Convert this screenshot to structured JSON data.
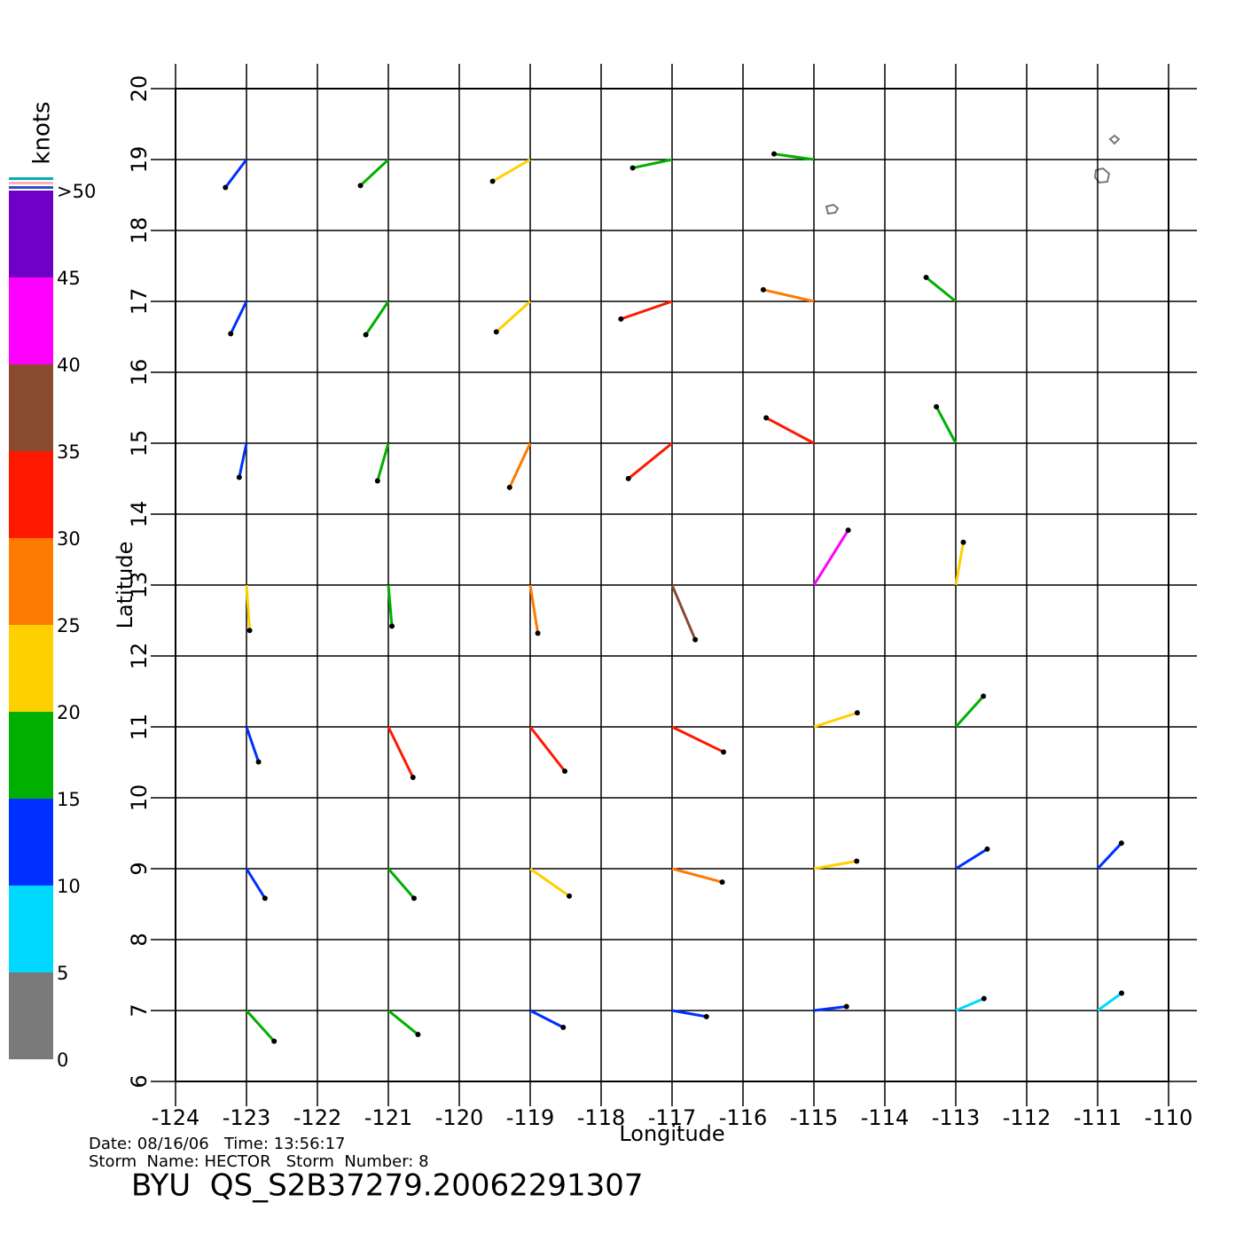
{
  "chart_data": {
    "type": "vector",
    "xlabel": "Longitude",
    "ylabel": "Latitude",
    "xlim": [
      -124,
      -110
    ],
    "ylim": [
      6,
      20
    ],
    "xticks": [
      -124,
      -123,
      -122,
      -121,
      -120,
      -119,
      -118,
      -117,
      -116,
      -115,
      -114,
      -113,
      -112,
      -111,
      -110
    ],
    "yticks": [
      6,
      7,
      8,
      9,
      10,
      11,
      12,
      13,
      14,
      15,
      16,
      17,
      18,
      19,
      20
    ],
    "grid": true,
    "grid_x": [
      -123,
      -121,
      -119,
      -117,
      -115,
      -113,
      -111
    ],
    "grid_y": [
      19,
      17,
      15,
      13,
      11,
      9,
      7
    ],
    "speed": [
      [
        12,
        15,
        20,
        17,
        17,
        null,
        null
      ],
      [
        13,
        17,
        22,
        30,
        28,
        15,
        null
      ],
      [
        12,
        16,
        25,
        32,
        30,
        18,
        null
      ],
      [
        22,
        18,
        25,
        35,
        40,
        20,
        null
      ],
      [
        14,
        32,
        32,
        33,
        22,
        18,
        null
      ],
      [
        12,
        16,
        24,
        28,
        20,
        14,
        12
      ],
      [
        18,
        15,
        14,
        12,
        10,
        8,
        7
      ]
    ],
    "direction": [
      [
        233,
        223,
        210,
        192,
        172,
        null,
        null
      ],
      [
        244,
        236,
        222,
        199,
        167,
        141,
        null
      ],
      [
        258,
        254,
        245,
        219,
        152,
        118,
        null
      ],
      [
        274,
        275,
        279,
        293,
        58,
        80,
        null
      ],
      [
        289,
        296,
        308,
        334,
        18,
        48,
        null
      ],
      [
        302,
        311,
        325,
        345,
        10,
        32,
        47
      ],
      [
        312,
        321,
        333,
        350,
        7,
        23,
        36
      ]
    ],
    "colorbar": {
      "title": "knots",
      "lim": [
        0,
        50
      ],
      "ticks": [
        0,
        5,
        10,
        15,
        20,
        25,
        30,
        35,
        40,
        45,
        {
          "value": 50,
          "label": ">50"
        }
      ],
      "colors": [
        "#7a7a7a",
        "#00d8ff",
        "#0030ff",
        "#00b000",
        "#ffd000",
        "#ff7a00",
        "#ff1800",
        "#8a4a30",
        "#ff00ff",
        "#7000c8"
      ]
    },
    "footer": {
      "line1": "Date: 08/16/06   Time: 13:56:17",
      "line2": "Storm  Name: HECTOR   Storm  Number: 8",
      "id": "BYU  QS_S2B37279.20062291307"
    }
  }
}
